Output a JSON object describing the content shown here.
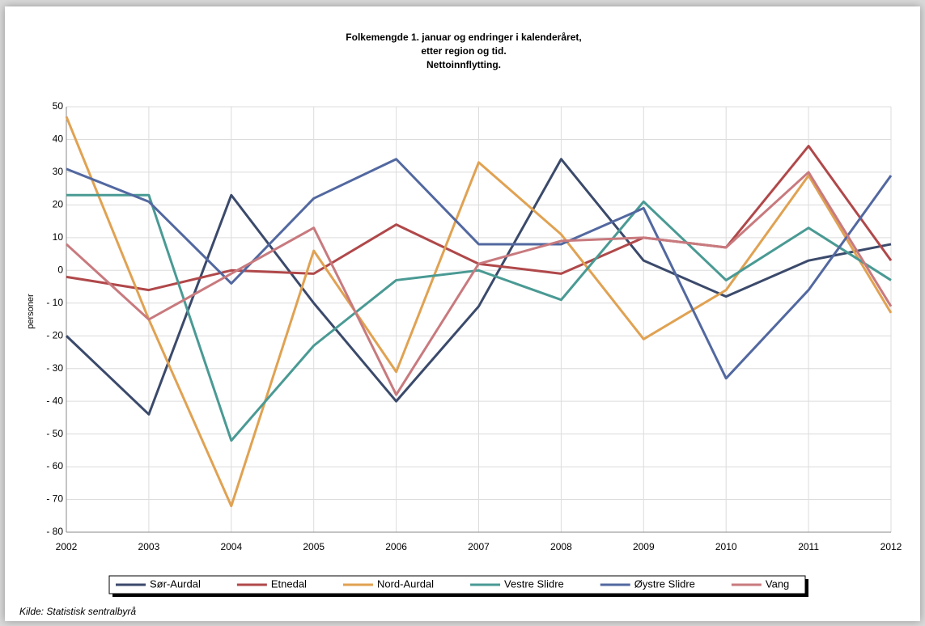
{
  "chart_data": {
    "type": "line",
    "title": [
      "Folkemengde 1. januar og endringer i kalenderåret,",
      "etter region og tid.",
      "Nettoinnflytting."
    ],
    "y_label": "personer",
    "source": "Kilde: Statistisk sentralbyrå",
    "x": [
      2002,
      2003,
      2004,
      2005,
      2006,
      2007,
      2008,
      2009,
      2010,
      2011,
      2012
    ],
    "xlim": [
      2002,
      2012
    ],
    "xticks": [
      2002,
      2003,
      2004,
      2005,
      2006,
      2007,
      2008,
      2009,
      2010,
      2011,
      2012
    ],
    "ylim": [
      -80,
      50
    ],
    "yticks": [
      50,
      40,
      30,
      20,
      10,
      0,
      {
        "value": -10,
        "label": "- 10"
      },
      {
        "value": -20,
        "label": "- 20"
      },
      {
        "value": -30,
        "label": "- 30"
      },
      {
        "value": -40,
        "label": "- 40"
      },
      {
        "value": -50,
        "label": "- 50"
      },
      {
        "value": -60,
        "label": "- 60"
      },
      {
        "value": -70,
        "label": "- 70"
      },
      {
        "value": -80,
        "label": "- 80"
      }
    ],
    "grid": true,
    "legend": "bottom",
    "series": [
      {
        "name": "Sør-Aurdal",
        "color": "#3b4a6b",
        "values": [
          -20,
          -44,
          23,
          -10,
          -40,
          -11,
          34,
          3,
          -8,
          3,
          8
        ]
      },
      {
        "name": "Etnedal",
        "color": "#b0484a",
        "values": [
          -2,
          -6,
          0,
          -1,
          14,
          2,
          -1,
          10,
          7,
          38,
          3
        ]
      },
      {
        "name": "Nord-Aurdal",
        "color": "#e0a252",
        "values": [
          47,
          -15,
          -72,
          6,
          -31,
          33,
          11,
          -21,
          -6,
          29,
          -13
        ]
      },
      {
        "name": "Vestre Slidre",
        "color": "#4a9a94",
        "values": [
          23,
          23,
          -52,
          -23,
          -3,
          0,
          -9,
          21,
          -3,
          13,
          -3
        ]
      },
      {
        "name": "Øystre Slidre",
        "color": "#5268a0",
        "values": [
          31,
          21,
          -4,
          22,
          34,
          8,
          8,
          19,
          -33,
          -6,
          29
        ]
      },
      {
        "name": "Vang",
        "color": "#c87a7e",
        "values": [
          8,
          -15,
          -1,
          13,
          -38,
          2,
          9,
          10,
          7,
          30,
          -11
        ]
      }
    ]
  }
}
